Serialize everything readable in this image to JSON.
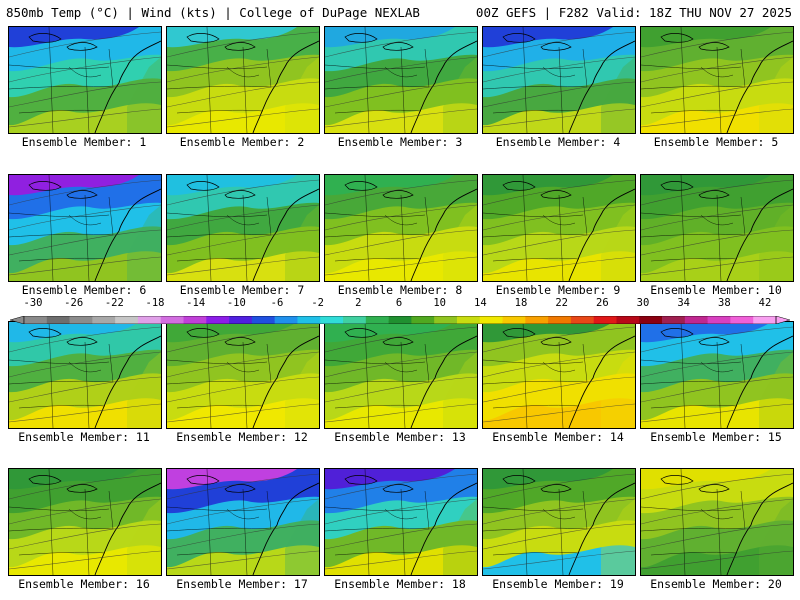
{
  "header": {
    "left": "850mb Temp (°C) | Wind (kts) | College of DuPage NEXLAB",
    "right": "00Z GEFS | F282 Valid: 18Z THU NOV 27 2025"
  },
  "colorbar": {
    "tick_labels": [
      "-30",
      "-26",
      "-22",
      "-18",
      "-14",
      "-10",
      "-6",
      "-2",
      "2",
      "6",
      "10",
      "14",
      "18",
      "22",
      "26",
      "30",
      "34",
      "38",
      "42"
    ],
    "colors": [
      "#8a8a8a",
      "#6e6e6e",
      "#8c8c8c",
      "#a8a8a8",
      "#c6c6c6",
      "#e0a0e8",
      "#d26ee0",
      "#c040d8",
      "#8c1ee8",
      "#5020e0",
      "#2050e0",
      "#2090ec",
      "#20c0e8",
      "#30dcd8",
      "#40d0a0",
      "#30b050",
      "#209030",
      "#50a820",
      "#90c420",
      "#c8dc10",
      "#f0e800",
      "#f8c800",
      "#f8a000",
      "#f07800",
      "#e84818",
      "#e01818",
      "#b80818",
      "#8c0010",
      "#a02050",
      "#c02890",
      "#d840c0",
      "#f060d8",
      "#f8a0f0"
    ]
  },
  "panels": [
    {
      "label": "Ensemble Member: 1",
      "fill_colors": [
        "#2040d8",
        "#20b8e8",
        "#30d0b0",
        "#50b040",
        "#a8d020"
      ]
    },
    {
      "label": "Ensemble Member: 2",
      "fill_colors": [
        "#30c8d0",
        "#48b048",
        "#90c420",
        "#c8dc10",
        "#e8e800"
      ]
    },
    {
      "label": "Ensemble Member: 3",
      "fill_colors": [
        "#20a8e0",
        "#30c8b0",
        "#40a840",
        "#80c020",
        "#d8e010"
      ]
    },
    {
      "label": "Ensemble Member: 4",
      "fill_colors": [
        "#2040d8",
        "#20b0e8",
        "#30c8b0",
        "#48a840",
        "#c0d818"
      ]
    },
    {
      "label": "Ensemble Member: 5",
      "fill_colors": [
        "#40a030",
        "#60b030",
        "#90c420",
        "#c8dc10",
        "#f0e000"
      ]
    },
    {
      "label": "Ensemble Member: 6",
      "fill_colors": [
        "#9020e0",
        "#2070e8",
        "#20c0e8",
        "#40b060",
        "#90c420"
      ]
    },
    {
      "label": "Ensemble Member: 7",
      "fill_colors": [
        "#20c0e0",
        "#30c8b0",
        "#40a840",
        "#80c020",
        "#d8e010"
      ]
    },
    {
      "label": "Ensemble Member: 8",
      "fill_colors": [
        "#30b050",
        "#48a838",
        "#80c020",
        "#c8dc10",
        "#e8e800"
      ]
    },
    {
      "label": "Ensemble Member: 9",
      "fill_colors": [
        "#309838",
        "#50a828",
        "#80c020",
        "#b8d818",
        "#e8e400"
      ]
    },
    {
      "label": "Ensemble Member: 10",
      "fill_colors": [
        "#309838",
        "#40a030",
        "#60b028",
        "#80c020",
        "#a8d018"
      ]
    },
    {
      "label": "Ensemble Member: 11",
      "fill_colors": [
        "#20b8e8",
        "#30c8a8",
        "#50b040",
        "#b0d018",
        "#f0e000"
      ]
    },
    {
      "label": "Ensemble Member: 12",
      "fill_colors": [
        "#40a838",
        "#60b030",
        "#90c420",
        "#c8dc10",
        "#f0e800"
      ]
    },
    {
      "label": "Ensemble Member: 13",
      "fill_colors": [
        "#30b050",
        "#40a838",
        "#70b828",
        "#b8d818",
        "#e8e800"
      ]
    },
    {
      "label": "Ensemble Member: 14",
      "fill_colors": [
        "#309838",
        "#90c420",
        "#c8dc10",
        "#f0e000",
        "#f8c800"
      ]
    },
    {
      "label": "Ensemble Member: 15",
      "fill_colors": [
        "#2070e8",
        "#20c0e8",
        "#40b060",
        "#90c420",
        "#e8e400"
      ]
    },
    {
      "label": "Ensemble Member: 16",
      "fill_colors": [
        "#309838",
        "#40a030",
        "#70b828",
        "#b8d818",
        "#e8e800"
      ]
    },
    {
      "label": "Ensemble Member: 17",
      "fill_colors": [
        "#c040e0",
        "#2040d8",
        "#20b8e8",
        "#40b060",
        "#b8d818"
      ]
    },
    {
      "label": "Ensemble Member: 18",
      "fill_colors": [
        "#5020d8",
        "#2080e8",
        "#30d0c0",
        "#70b828",
        "#e0e000"
      ]
    },
    {
      "label": "Ensemble Member: 19",
      "fill_colors": [
        "#309838",
        "#50a828",
        "#90c420",
        "#c8dc10",
        "#20c0e8"
      ]
    },
    {
      "label": "Ensemble Member: 20",
      "fill_colors": [
        "#e0e000",
        "#c8dc10",
        "#90c420",
        "#60b030",
        "#40a030"
      ]
    }
  ]
}
